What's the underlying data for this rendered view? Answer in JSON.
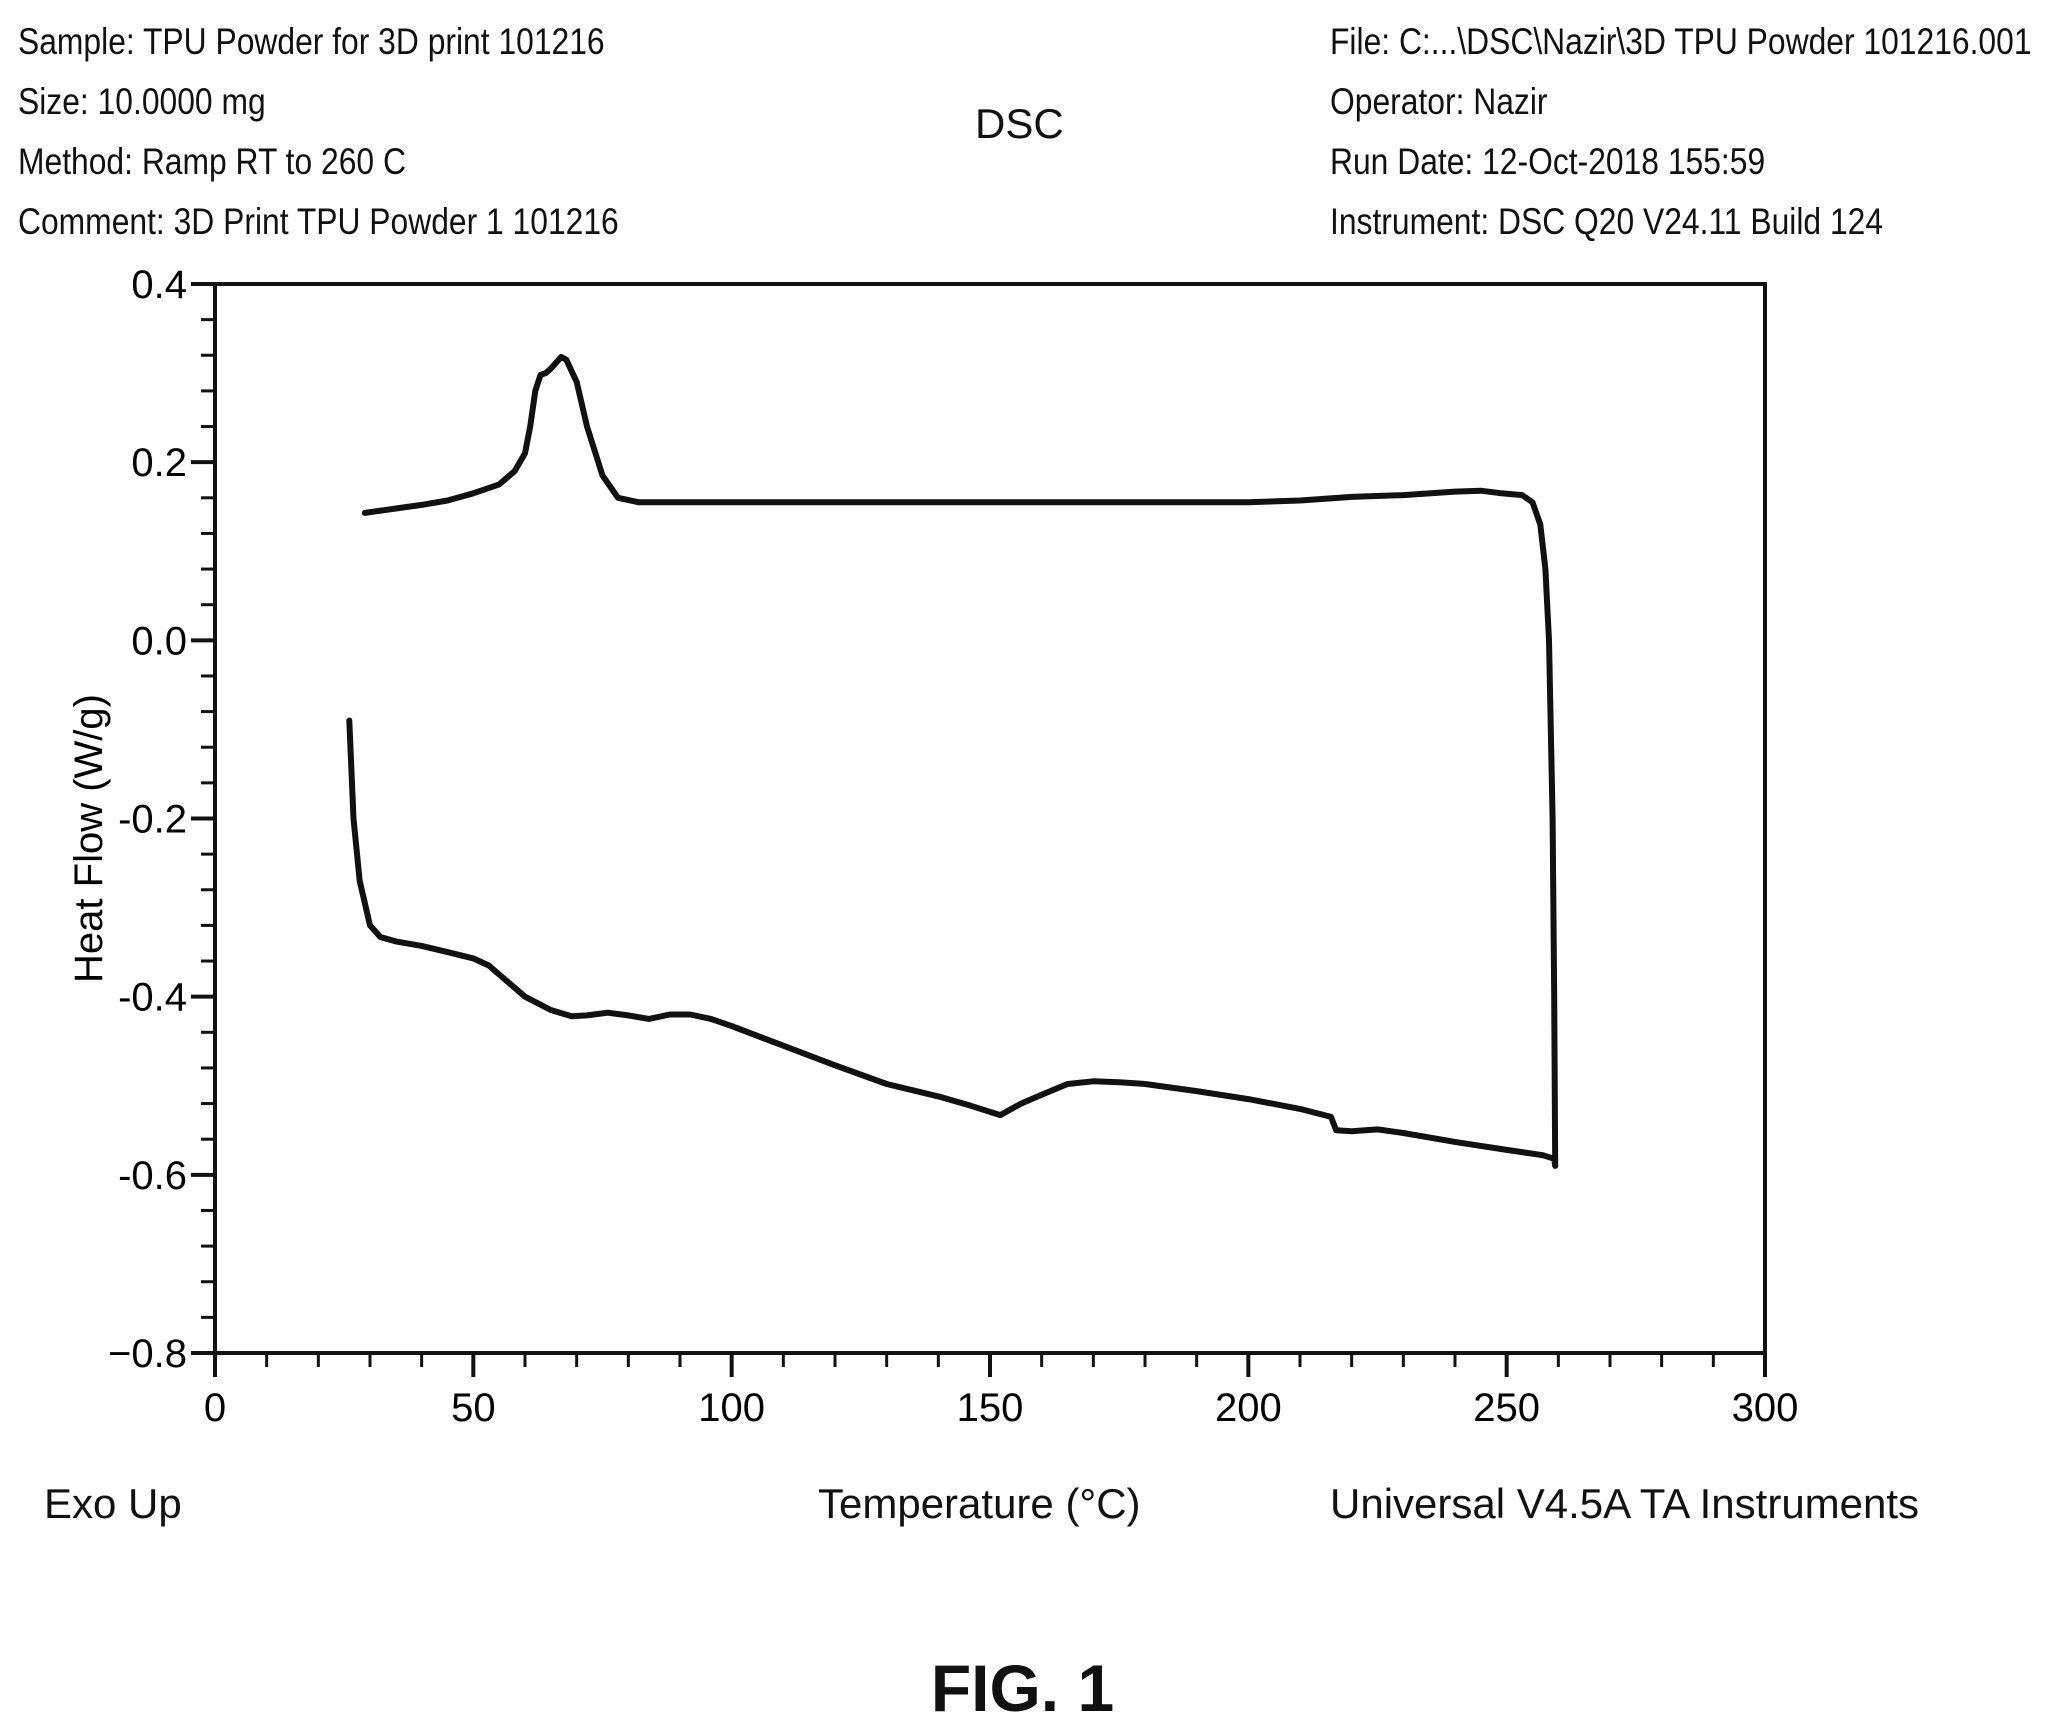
{
  "header": {
    "left": [
      "Sample: TPU Powder for 3D print 101216",
      "Size: 10.0000 mg",
      "Method: Ramp RT to 260 C",
      "Comment: 3D Print TPU Powder 1 101216"
    ],
    "right": [
      "File: C:...\\DSC\\Nazir\\3D TPU Powder 101216.001",
      "Operator: Nazir",
      "Run Date: 12-Oct-2018 155:59",
      "Instrument: DSC Q20 V24.11 Build 124"
    ],
    "title": "DSC"
  },
  "footer": {
    "exo": "Exo Up",
    "software": "Universal V4.5A TA Instruments"
  },
  "figure_label": "FIG. 1",
  "chart_data": {
    "type": "line",
    "title": "DSC",
    "xlabel": "Temperature (°C)",
    "ylabel": "Heat Flow (W/g)",
    "xlim": [
      0,
      300
    ],
    "ylim": [
      -0.8,
      0.4
    ],
    "xticks": [
      0,
      50,
      100,
      150,
      200,
      250,
      300
    ],
    "xtick_labels": [
      "0",
      "50",
      "100",
      "150",
      "200",
      "250",
      "300"
    ],
    "yticks": [
      0.4,
      0.2,
      0.0,
      -0.2,
      -0.4,
      -0.6,
      -0.8
    ],
    "ytick_labels": [
      "0.4",
      "0.2",
      "0.0",
      "-0.2",
      "-0.4",
      "-0.6",
      "−0.8"
    ],
    "grid": false,
    "line_color": "#111111",
    "series": [
      {
        "points": [
          [
            26,
            -0.09
          ],
          [
            26.8,
            -0.2
          ],
          [
            28,
            -0.27
          ],
          [
            30,
            -0.32
          ],
          [
            32,
            -0.333
          ],
          [
            35,
            -0.338
          ],
          [
            40,
            -0.343
          ],
          [
            45,
            -0.35
          ],
          [
            50,
            -0.357
          ],
          [
            53,
            -0.365
          ],
          [
            56,
            -0.38
          ],
          [
            60,
            -0.4
          ],
          [
            65,
            -0.415
          ],
          [
            69,
            -0.422
          ],
          [
            72,
            -0.421
          ],
          [
            76,
            -0.418
          ],
          [
            80,
            -0.421
          ],
          [
            84,
            -0.425
          ],
          [
            88,
            -0.42
          ],
          [
            92,
            -0.42
          ],
          [
            96,
            -0.425
          ],
          [
            100,
            -0.433
          ],
          [
            110,
            -0.455
          ],
          [
            120,
            -0.477
          ],
          [
            130,
            -0.498
          ],
          [
            140,
            -0.512
          ],
          [
            146,
            -0.522
          ],
          [
            152,
            -0.533
          ],
          [
            156,
            -0.52
          ],
          [
            160,
            -0.51
          ],
          [
            165,
            -0.498
          ],
          [
            170,
            -0.495
          ],
          [
            175,
            -0.496
          ],
          [
            180,
            -0.498
          ],
          [
            190,
            -0.506
          ],
          [
            200,
            -0.515
          ],
          [
            210,
            -0.526
          ],
          [
            216,
            -0.535
          ],
          [
            217,
            -0.55
          ],
          [
            220,
            -0.551
          ],
          [
            225,
            -0.549
          ],
          [
            230,
            -0.553
          ],
          [
            240,
            -0.563
          ],
          [
            250,
            -0.572
          ],
          [
            257,
            -0.578
          ],
          [
            259.2,
            -0.582
          ],
          [
            259.4,
            -0.59
          ],
          [
            259.2,
            -0.4
          ],
          [
            258.9,
            -0.2
          ],
          [
            258.2,
            0.0
          ],
          [
            257.5,
            0.08
          ],
          [
            256.5,
            0.13
          ],
          [
            255,
            0.155
          ],
          [
            253,
            0.163
          ],
          [
            249,
            0.165
          ],
          [
            245,
            0.168
          ],
          [
            240,
            0.167
          ],
          [
            230,
            0.163
          ],
          [
            220,
            0.161
          ],
          [
            210,
            0.157
          ],
          [
            200,
            0.155
          ],
          [
            150,
            0.155
          ],
          [
            100,
            0.155
          ],
          [
            82,
            0.155
          ],
          [
            78,
            0.16
          ],
          [
            75,
            0.185
          ],
          [
            72,
            0.24
          ],
          [
            70,
            0.29
          ],
          [
            68,
            0.315
          ],
          [
            67,
            0.318
          ],
          [
            65,
            0.305
          ],
          [
            64,
            0.3
          ],
          [
            63,
            0.298
          ],
          [
            62,
            0.28
          ],
          [
            61,
            0.24
          ],
          [
            60,
            0.21
          ],
          [
            58,
            0.19
          ],
          [
            55,
            0.175
          ],
          [
            50,
            0.165
          ],
          [
            45,
            0.157
          ],
          [
            40,
            0.152
          ],
          [
            35,
            0.148
          ],
          [
            29,
            0.143
          ]
        ]
      }
    ]
  }
}
